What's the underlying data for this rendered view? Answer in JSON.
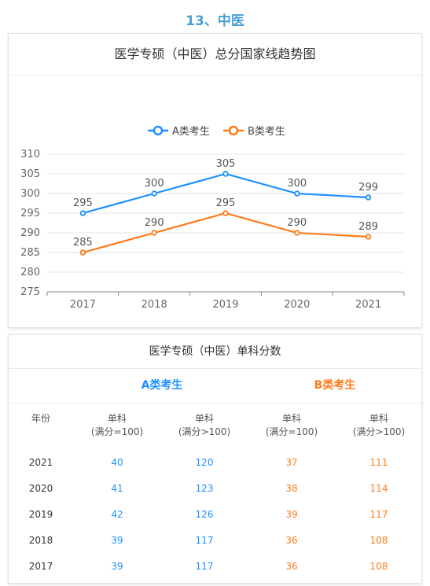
{
  "section_title": "13、中医",
  "chart_card": {
    "title": "医学专硕（中医）总分国家线趋势图"
  },
  "chart_data": {
    "type": "line",
    "title": "医学专硕（中医）总分国家线趋势图",
    "categories": [
      "2017",
      "2018",
      "2019",
      "2020",
      "2021"
    ],
    "series": [
      {
        "name": "A类考生",
        "values": [
          295,
          300,
          305,
          300,
          299
        ],
        "color": "#1e90ff"
      },
      {
        "name": "B类考生",
        "values": [
          285,
          290,
          295,
          290,
          289
        ],
        "color": "#ff7a1a"
      }
    ],
    "ylim": [
      275,
      310
    ],
    "yticks": [
      275,
      280,
      285,
      290,
      295,
      300,
      305,
      310
    ],
    "grid": true,
    "legend_position": "top-center",
    "xlabel": "",
    "ylabel": ""
  },
  "table_card": {
    "title": "医学专硕（中医）单科分数",
    "group_a": "A类考生",
    "group_b": "B类考生",
    "headers": [
      {
        "l1": "年份",
        "l2": ""
      },
      {
        "l1": "单科",
        "l2": "(满分=100)"
      },
      {
        "l1": "单科",
        "l2": "(满分>100)"
      },
      {
        "l1": "单科",
        "l2": "(满分=100)"
      },
      {
        "l1": "单科",
        "l2": "(满分>100)"
      }
    ],
    "rows": [
      {
        "year": "2021",
        "a100": "40",
        "a_over": "120",
        "b100": "37",
        "b_over": "111"
      },
      {
        "year": "2020",
        "a100": "41",
        "a_over": "123",
        "b100": "38",
        "b_over": "114"
      },
      {
        "year": "2019",
        "a100": "42",
        "a_over": "126",
        "b100": "39",
        "b_over": "117"
      },
      {
        "year": "2018",
        "a100": "39",
        "a_over": "117",
        "b100": "36",
        "b_over": "108"
      },
      {
        "year": "2017",
        "a100": "39",
        "a_over": "117",
        "b100": "36",
        "b_over": "108"
      }
    ]
  }
}
